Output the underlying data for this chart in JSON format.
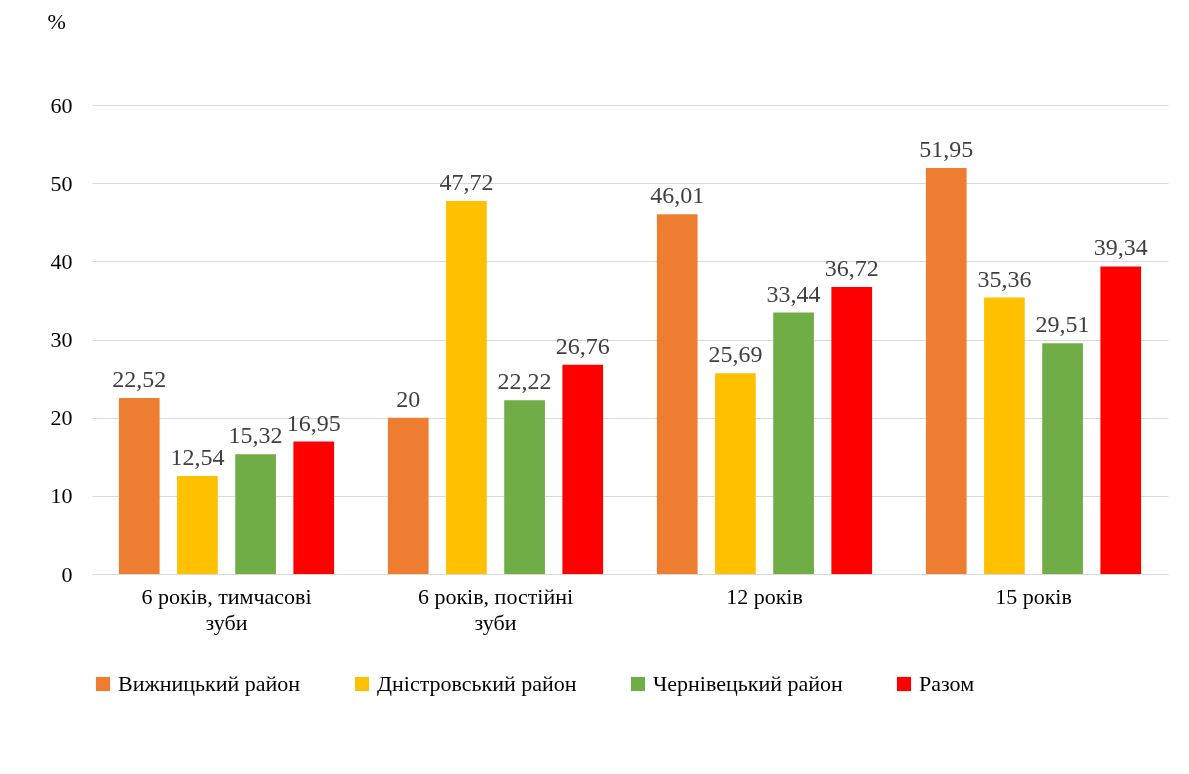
{
  "chart_data": {
    "type": "bar",
    "ylabel": "%",
    "categories": [
      "6 років, тимчасові зуби",
      "6 років, постійні зуби",
      "12 років",
      "15 років"
    ],
    "series": [
      {
        "name": "Вижницький район",
        "color": "#ed7d31",
        "values": [
          22.52,
          20,
          46.01,
          51.95
        ],
        "value_labels": [
          "22,52",
          "20",
          "46,01",
          "51,95"
        ]
      },
      {
        "name": "Дністровський район",
        "color": "#ffc000",
        "values": [
          12.54,
          47.72,
          25.69,
          35.36
        ],
        "value_labels": [
          "12,54",
          "47,72",
          "25,69",
          "35,36"
        ]
      },
      {
        "name": "Чернівецький район",
        "color": "#70ad47",
        "values": [
          15.32,
          22.22,
          33.44,
          29.51
        ],
        "value_labels": [
          "15,32",
          "22,22",
          "33,44",
          "29,51"
        ]
      },
      {
        "name": "Разом",
        "color": "#ff0000",
        "values": [
          16.95,
          26.76,
          36.72,
          39.34
        ],
        "value_labels": [
          "16,95",
          "26,76",
          "36,72",
          "39,34"
        ]
      }
    ],
    "ylim": [
      0,
      60
    ],
    "yticks": [
      0,
      10,
      20,
      30,
      40,
      50,
      60
    ],
    "grid": "y",
    "legend": "bottom"
  }
}
